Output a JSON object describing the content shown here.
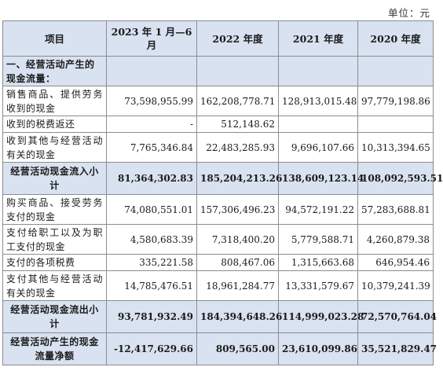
{
  "unit": "单位：元",
  "headers": [
    "项目",
    "2023 年 1 月—6 月",
    "2022 年度",
    "2021 年度",
    "2020 年度"
  ],
  "rows": [
    {
      "label": "一、经营活动产生的现金流量：",
      "values": [
        "",
        "",
        "",
        ""
      ]
    },
    {
      "label": "销售商品、提供劳务收到的现金",
      "values": [
        "73,598,955.99",
        "162,208,778.71",
        "128,913,015.48",
        "97,779,198.86"
      ]
    },
    {
      "label": "收到的税费返还",
      "values": [
        "-",
        "512,148.62",
        "",
        ""
      ]
    },
    {
      "label": "收到其他与经营活动有关的现金",
      "values": [
        "7,765,346.84",
        "22,483,285.93",
        "9,696,107.66",
        "10,313,394.65"
      ]
    },
    {
      "label": "经营活动现金流入小计",
      "values": [
        "81,364,302.83",
        "185,204,213.26",
        "138,609,123.14",
        "108,092,593.51"
      ]
    },
    {
      "label": "购买商品、接受劳务支付的现金",
      "values": [
        "74,080,551.01",
        "157,306,496.23",
        "94,572,191.22",
        "57,283,688.81"
      ]
    },
    {
      "label": "支付给职工以及为职工支付的现金",
      "values": [
        "4,580,683.39",
        "7,318,400.20",
        "5,779,588.71",
        "4,260,879.38"
      ]
    },
    {
      "label": "支付的各项税费",
      "values": [
        "335,221.58",
        "808,467.06",
        "1,315,663.68",
        "646,954.46"
      ]
    },
    {
      "label": "支付其他与经营活动有关的现金",
      "values": [
        "14,785,476.51",
        "18,961,284.77",
        "13,331,579.67",
        "10,379,241.39"
      ]
    },
    {
      "label": "经营活动现金流出小计",
      "values": [
        "93,781,932.49",
        "184,394,648.26",
        "114,999,023.28",
        "72,570,764.04"
      ]
    },
    {
      "label": "经营活动产生的现金流量净额",
      "values": [
        "-12,417,629.66",
        "809,565.00",
        "23,610,099.86",
        "35,521,829.47"
      ]
    }
  ]
}
